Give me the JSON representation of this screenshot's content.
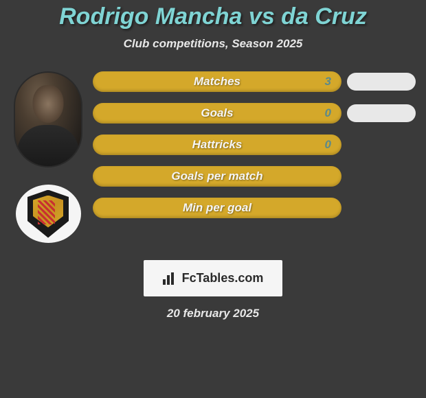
{
  "title": "Rodrigo Mancha vs da Cruz",
  "subtitle": "Club competitions, Season 2025",
  "stats": [
    {
      "label": "Matches",
      "value": "3",
      "has_right_pill": true
    },
    {
      "label": "Goals",
      "value": "0",
      "has_right_pill": true
    },
    {
      "label": "Hattricks",
      "value": "0",
      "has_right_pill": false
    },
    {
      "label": "Goals per match",
      "value": "",
      "has_right_pill": false
    },
    {
      "label": "Min per goal",
      "value": "",
      "has_right_pill": false
    }
  ],
  "footer": {
    "logo_text": "FcTables.com",
    "date": "20 february 2025"
  },
  "colors": {
    "background": "#3a3a3a",
    "title_color": "#7fd4d4",
    "bar_color": "#d4a82a",
    "value_color": "#5c8a8a",
    "pill_color": "#e8e8e8",
    "text_light": "#e8e8e8"
  }
}
